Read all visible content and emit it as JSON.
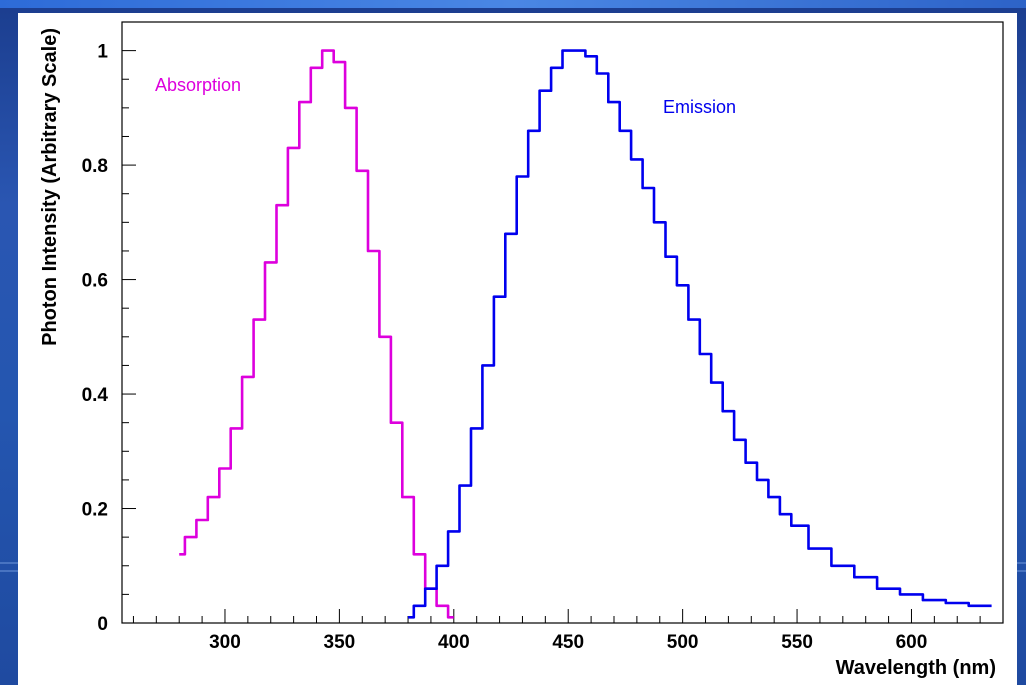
{
  "chart_data": {
    "type": "line",
    "title": "",
    "xlabel": "Wavelength (nm)",
    "ylabel": "Photon Intensity (Arbitrary Scale)",
    "xlim": [
      255,
      640
    ],
    "ylim": [
      0,
      1.05
    ],
    "x_ticks": [
      300,
      350,
      400,
      450,
      500,
      550,
      600
    ],
    "x_tick_labels": [
      "300",
      "350",
      "400",
      "450",
      "500",
      "550",
      "600"
    ],
    "y_ticks": [
      0,
      0.2,
      0.4,
      0.6,
      0.8,
      1
    ],
    "y_tick_labels": [
      "0",
      "0.2",
      "0.4",
      "0.6",
      "0.8",
      "1"
    ],
    "grid": false,
    "colors": {
      "absorption": "#dd00dd",
      "emission": "#0000ee"
    },
    "series": [
      {
        "name": "Absorption",
        "x": [
          280,
          285,
          290,
          295,
          300,
          305,
          310,
          315,
          320,
          325,
          330,
          335,
          340,
          345,
          350,
          355,
          360,
          365,
          370,
          375,
          380,
          385,
          390,
          395,
          400
        ],
        "y": [
          0.12,
          0.15,
          0.18,
          0.22,
          0.27,
          0.34,
          0.43,
          0.53,
          0.63,
          0.73,
          0.83,
          0.91,
          0.97,
          1.0,
          0.98,
          0.9,
          0.79,
          0.65,
          0.5,
          0.35,
          0.22,
          0.12,
          0.06,
          0.03,
          0.01
        ]
      },
      {
        "name": "Emission",
        "x": [
          380,
          385,
          390,
          395,
          400,
          405,
          410,
          415,
          420,
          425,
          430,
          435,
          440,
          445,
          450,
          455,
          460,
          465,
          470,
          475,
          480,
          485,
          490,
          495,
          500,
          505,
          510,
          515,
          520,
          525,
          530,
          535,
          540,
          545,
          550,
          560,
          570,
          580,
          590,
          600,
          610,
          620,
          630,
          635
        ],
        "y": [
          0.01,
          0.03,
          0.06,
          0.1,
          0.16,
          0.24,
          0.34,
          0.45,
          0.57,
          0.68,
          0.78,
          0.86,
          0.93,
          0.97,
          1.0,
          1.0,
          0.99,
          0.96,
          0.91,
          0.86,
          0.81,
          0.76,
          0.7,
          0.64,
          0.59,
          0.53,
          0.47,
          0.42,
          0.37,
          0.32,
          0.28,
          0.25,
          0.22,
          0.19,
          0.17,
          0.13,
          0.1,
          0.08,
          0.06,
          0.05,
          0.04,
          0.035,
          0.03,
          0.03
        ]
      }
    ]
  }
}
